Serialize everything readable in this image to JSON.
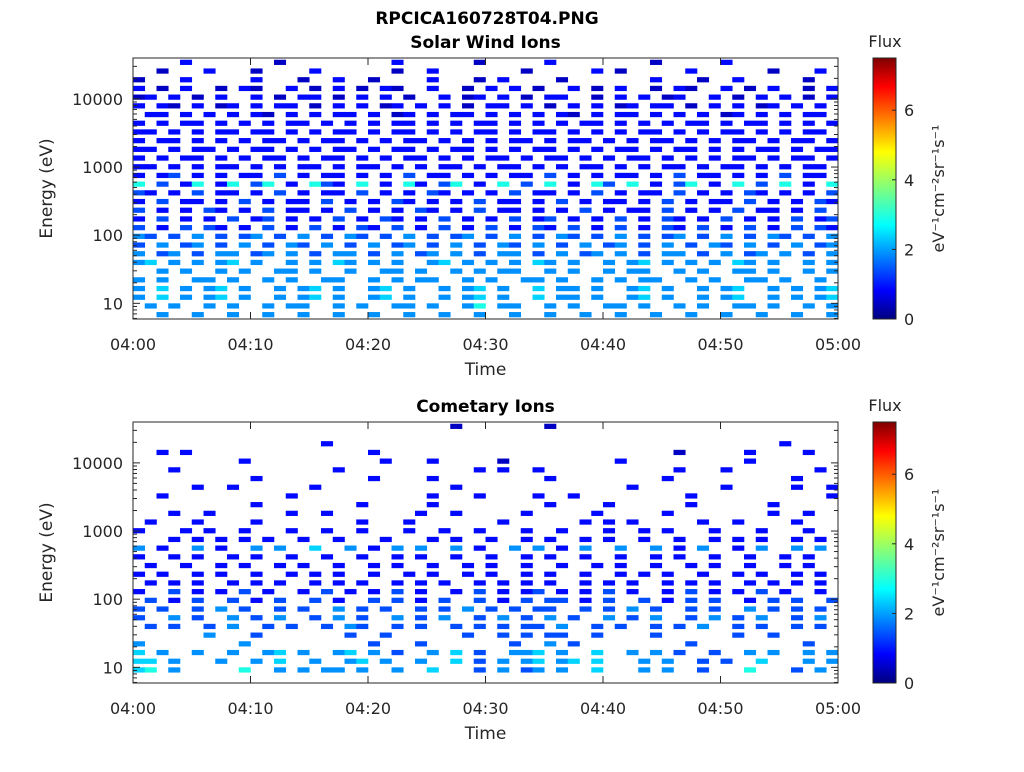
{
  "figure_title": "RPCICA160728T04.PNG",
  "chart_data": [
    {
      "type": "heatmap",
      "title": "Solar Wind Ions",
      "xlabel": "Time",
      "ylabel": "Energy (eV)",
      "x_tick_labels": [
        "04:00",
        "04:10",
        "04:20",
        "04:30",
        "04:40",
        "04:50",
        "05:00"
      ],
      "x_range_minutes": [
        0,
        60
      ],
      "y_tick_labels": [
        "10",
        "100",
        "1000",
        "10000"
      ],
      "y_tick_values": [
        10,
        100,
        1000,
        10000
      ],
      "y_scale": "log",
      "ylim_log10": [
        0.77,
        4.6
      ],
      "time_bins": 60,
      "encoding": "rows from highest to lowest energy; each char is one 1-minute bin; '.' = no data; digit d = flux d*0.5",
      "rows": [
        "....2.......1.........2......1.....2........1.....2..........",
        "..1...2...1....2......1..2.......1.....2.1.....2......1...2..",
        "1...2.....2...1..2..1....2...1.2....1.......2...1..2.....1...",
        "2.1.2..1.21..2.1.2.1.21..2..1.2.2.1..2.1.2..1.21..2.1.2..1.2",
        "12.2.1.2..2.1.22.1.2.2.1..2.12.2.1.22..1.2.2.12..2.1.2.2.1.22",
        "2.21.2.12.2.22.1.2.2.12.2.2.1.22.2.1.2.2.12.22.1.2.2.12.2.2.1",
        ".22.2.2.2.21.2.2.22.2.12.2.22.2.2.2.21.2.22.2.2.2.12.2.2.22.2",
        "2.2.22.2.2.2.22.2.2.2.22.2.2.22.2.2.2.22.2.2.2.22.2.22.2.2.2.",
        "22.2.2.22.22.2.2.22.2.22.2.2.22.2.22.2.2.2.22.2.2.22.2.2.22.2",
        "2.22.2.2.2.22.2.22.2.2.22.2.2.2.22.2.22.2.2.22.2.2.22.2.22.2.",
        "22.2.22.2.22.2.2.22.2.22.2.22.2.2.22.2.2.22.2.22.2.2.22.2.22.",
        "2.2.22.2.2.22.2.22.2.2.22.2.2.22.2.22.2.2.22.2.2.2.22.2.22.22",
        "22.2.2.22.2.2.22.2.22.2.2.22.2.22.2.2.22.2.2.22.2.22.2.2.22.2",
        "2.23.2.2.22.3.2.22.2.2.3.22.2.2.22.3.2.2.22.2.3.22.2.2.3.22.2",
        "6.3.26.26.36.2.632.6.2.62.36.2.6.3.6.2.63.6.2.36.2.6.3.6.2.6.",
        "32.2.3.22.2.3.2.22.3.2.2.32.2.2.3.22.2.3.2.22.3.2.2.32.2.2.3.",
        "2.3.22.2.3.2.22.3.2.2.32.2.2.3.22.2.3.2.22.2.3.2.22.3.2.2.32.",
        "3.2.2.32.2.3.22.2.3.2.2.32.2.3.22.2.2.3.2.22.3.2.2.3.22.2.3.2",
        "2.3.2.2.3.23.2.2.3.2.32.2.3.2.2.3.23.2.2.3.2.32.2.3.2.2.3.23.",
        "3.2.3.32.2.3.2.3.2.32.3.2.3.2.3.2.32.3.2.3.2.32.3.2.3.2.3.32.",
        "43.3.4.3.34.3.4.3.43.3.4.3.34.3.4.3.43.3.4.3.34.3.4.3.43.3.44",
        "3.4.34.3.4.3.43.4.3.4.34.3.4.3.43.4.3.4.34.3.4.3.43.4.3.4.34.",
        "4.34.3.44.34.4.3.44.3.4.34.4.3.44.3.4.34.4.3.44.3.4.34.4.3.44",
        "45.4.4.45.4..4.4.54.4.4..45.4.4.4.54.4..4.45.4.4.4.54.4..4.45",
        "..4.4..4.4..44.4..4..44.4..4.4.44..4.4..4.44..4.4..44.4..4.4.",
        "4.4..44.4..4.4..44..4.4.44..4.4..44.4..4.4.44..4.4..44.4..4.4",
        "4.5.4.45.4..4.45.4..45.4..4.45.4..5.44.4..45.4..4.45..4.4.45.",
        "4.5.4.45.4..4.45.4..45.4..4.45.4..5.44.4..45.4..4.45..4.4.45.",
        ".4.4..4.4..4.44..4.4..44.4..46.44..4.4..44.4..4.4..44.4..4.4.",
        "..4..4..4..4..4..4..4..4..4..4..4..4..4..4..4..4..4..4..4..4."
      ],
      "colorbar": {
        "label": "Flux",
        "units": "eV⁻¹cm⁻²sr⁻¹s⁻¹",
        "tick_labels": [
          "0",
          "2",
          "4",
          "6"
        ],
        "tick_values": [
          0,
          2,
          4,
          6
        ],
        "range": [
          0,
          7.5
        ],
        "colormap": "jet"
      }
    },
    {
      "type": "heatmap",
      "title": "Cometary Ions",
      "xlabel": "Time",
      "ylabel": "Energy (eV)",
      "x_tick_labels": [
        "04:00",
        "04:10",
        "04:20",
        "04:30",
        "04:40",
        "04:50",
        "05:00"
      ],
      "x_range_minutes": [
        0,
        60
      ],
      "y_tick_labels": [
        "10",
        "100",
        "1000",
        "10000"
      ],
      "y_tick_values": [
        10,
        100,
        1000,
        10000
      ],
      "y_scale": "log",
      "ylim_log10": [
        0.77,
        4.6
      ],
      "time_bins": 60,
      "encoding": "rows from highest to lowest energy; each char is one 1-minute bin; '.' = no data; digit d = flux d*0.5",
      "rows": [
        "...........................1.......1........................",
        "............................................................",
        "................2......................................2.....",
        "..2.2...............2.........................1.....2....2..",
        ".........2...........2...2.....1.........2..........2.......",
        "...2.............2...........2.2..2...........2...2.......2.",
        "..........2.........2....2.........2.........2..........2...",
        ".....2..2......2...........2..............2.......2.....2..2",
        "..2..........2...........2...2....2..2.........2...........2",
        "..........2........2.....2.........2....2......2......2.....",
        "...2..2......2..2.......2..2.....2.....2.....2........2..2...",
        ".2...2....2........2...2.......2......2.2.2.....2..2....2...",
        "2...2.2..2...2..2..2...2..2..2...2..2...2..2.2...2...2...2..",
        "...2.2.2.2.2..2..2...2...2.2..2..2.2..2.2..2..2..2.2.2..2.2.",
        "4.2..4.2..4.4..5..4.2.4.4..4.2..4.4.2.4..4..4.2.4..2.4..4.4..",
        "2..2.2..2.2..2..2..2..2.2..2..2..2.2..2..2..2.2..2..2..2.2..2",
        ".2..2..2.2..2.2..2..2.2..2..2.2..2..2..2.2..2..2.2..2..2.2..2.",
        "2.2..2.2..2..2.2.2..2..2.2..2.2..2.2..2..2.2.2..2..2.2..2.2..2",
        ".2.2.2..2.2.2..2.2.2..2.2.2..2.2.2.2..2.2.2..2.2.2..2.2.2.2.2.",
        "2..3.2.2.3.2..2.3.2.2.3.2..2.3.2.23.2.2.3.2..2.3.2.2.3.2..2.3.",
        ".3.2.3..3.2.3..3.2..3.3.2.3..3.2.3.33.2.3..3.2.3.3..2.3.3..3.",
        "3.3..3.4.3..3.3..4.3.3..3.3.4.3.3.33..3.3.4.3..3.3..4.3.3.3..",
        "3..4.3..4.3.4..3.4.3..4.3.4..3.4.3.4.3..4.3.4..3.4.3.4..3.4.3",
        ".3.3..3.4..3.3..3.43..3.3..3.3.3.33.4..3.3..3.3.4..3.3..3.3..",
        "......4...3.......3..3......3..3.3.33..3....3......3..3......",
        "4........4..........3...3.......3..4.3.........3.........3...",
        "5.4..4..4..45.4..45.4.3..4.5.3..445.4..5..4.4.3..3..4.4..4.4",
        "55.4...4..4.5..4..45.4..4..5.3.4.45.45.5...4.4..3.3..5...4.4",
        "56.4.....6..4.4.44.4..4..5...3.4.34.4..5...4.4..3...6...3.4.",
        "............................................................"
      ],
      "colorbar": {
        "label": "Flux",
        "units": "eV⁻¹cm⁻²sr⁻¹s⁻¹",
        "tick_labels": [
          "0",
          "2",
          "4",
          "6"
        ],
        "tick_values": [
          0,
          2,
          4,
          6
        ],
        "range": [
          0,
          7.5
        ],
        "colormap": "jet"
      }
    }
  ]
}
